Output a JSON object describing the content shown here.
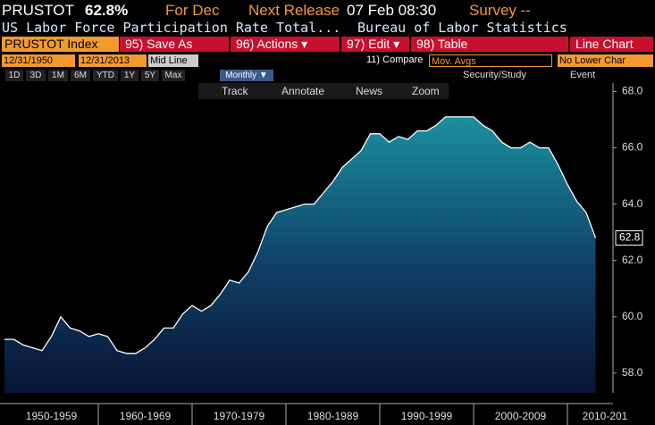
{
  "ui": {
    "ticker": "PRUSTOT",
    "last": "62.8%",
    "period": "For Dec",
    "next_label": "Next Release",
    "next_date": "07 Feb 08:30",
    "survey": "Survey --",
    "description": "US Labor Force Participation Rate Total...",
    "source": "Bureau of Labor Statistics",
    "security": "PRUSTOT Index",
    "buttons": [
      "95) Save As",
      "96) Actions ▾",
      "97) Edit ▾",
      "98) Table"
    ],
    "chart_kind": "Line Chart",
    "start_date": "12/31/1950",
    "end_date": "12/31/2013",
    "mid_line": "Mid Line",
    "compare": "11) Compare",
    "mov_avgs": "Mov. Avgs",
    "lower_chart": "No Lower Char",
    "ranges": [
      "1D",
      "3D",
      "1M",
      "6M",
      "YTD",
      "1Y",
      "5Y",
      "Max"
    ],
    "frequency": "Monthly ▼",
    "security_study": "Security/Study",
    "event": "Event",
    "tools": [
      "Track",
      "Annotate",
      "News",
      "Zoom"
    ]
  },
  "chart_data": {
    "type": "area",
    "color": "#ffffff",
    "grid": false,
    "x": [
      1950,
      1951,
      1952,
      1953,
      1954,
      1955,
      1956,
      1957,
      1958,
      1959,
      1960,
      1961,
      1962,
      1963,
      1964,
      1965,
      1966,
      1967,
      1968,
      1969,
      1970,
      1971,
      1972,
      1973,
      1974,
      1975,
      1976,
      1977,
      1978,
      1979,
      1980,
      1981,
      1982,
      1983,
      1984,
      1985,
      1986,
      1987,
      1988,
      1989,
      1990,
      1991,
      1992,
      1993,
      1994,
      1995,
      1996,
      1997,
      1998,
      1999,
      2000,
      2001,
      2002,
      2003,
      2004,
      2005,
      2006,
      2007,
      2008,
      2009,
      2010,
      2011,
      2012,
      2013
    ],
    "values": [
      59.2,
      59.2,
      59.0,
      58.9,
      58.8,
      59.3,
      60.0,
      59.6,
      59.5,
      59.3,
      59.4,
      59.3,
      58.8,
      58.7,
      58.7,
      58.9,
      59.2,
      59.6,
      59.6,
      60.1,
      60.4,
      60.2,
      60.4,
      60.8,
      61.3,
      61.2,
      61.6,
      62.3,
      63.2,
      63.7,
      63.8,
      63.9,
      64.0,
      64.0,
      64.4,
      64.8,
      65.3,
      65.6,
      65.9,
      66.5,
      66.5,
      66.2,
      66.4,
      66.3,
      66.6,
      66.6,
      66.8,
      67.1,
      67.1,
      67.1,
      67.1,
      66.8,
      66.6,
      66.2,
      66.0,
      66.0,
      66.2,
      66.0,
      66.0,
      65.4,
      64.7,
      64.1,
      63.7,
      62.8
    ],
    "last_label": "62.8",
    "xlim": [
      1950,
      2014
    ],
    "xticks": [
      {
        "value": 1950,
        "label": "1950-1959"
      },
      {
        "value": 1960,
        "label": "1960-1969"
      },
      {
        "value": 1970,
        "label": "1970-1979"
      },
      {
        "value": 1980,
        "label": "1980-1989"
      },
      {
        "value": 1990,
        "label": "1990-1999"
      },
      {
        "value": 2000,
        "label": "2000-2009"
      },
      {
        "value": 2010,
        "label": "2010-201"
      }
    ],
    "ylim": [
      57.3,
      68.3
    ],
    "yticks": [
      {
        "value": 58,
        "label": "58.0"
      },
      {
        "value": 60,
        "label": "60.0"
      },
      {
        "value": 62,
        "label": "62.0"
      },
      {
        "value": 64,
        "label": "64.0"
      },
      {
        "value": 66,
        "label": "66.0"
      },
      {
        "value": 68,
        "label": "68.0"
      }
    ]
  }
}
